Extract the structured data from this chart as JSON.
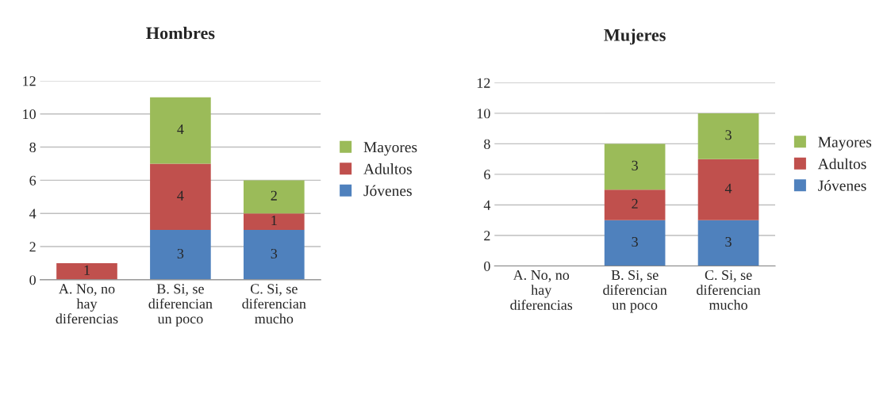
{
  "chart_data": [
    {
      "type": "bar",
      "title": "Hombres",
      "stacked": true,
      "categories": [
        "A. No, no\nhay\ndiferencias",
        "B. Si, se\ndiferencian\nun poco",
        "C. Si, se\ndiferencian\nmucho"
      ],
      "ylim": [
        0,
        12
      ],
      "yticks": [
        0,
        2,
        4,
        6,
        8,
        10,
        12
      ],
      "grid": "y",
      "legend": "right",
      "series": [
        {
          "name": "Jóvenes",
          "color": "#4f81bd",
          "values": [
            0,
            3,
            3
          ],
          "value_labels": [
            null,
            "3",
            "3"
          ]
        },
        {
          "name": "Adultos",
          "color": "#c0504d",
          "values": [
            1,
            4,
            1
          ],
          "value_labels": [
            "1",
            "4",
            "1"
          ]
        },
        {
          "name": "Mayores",
          "color": "#9bbb59",
          "values": [
            0,
            4,
            2
          ],
          "value_labels": [
            null,
            "4",
            "2"
          ]
        }
      ]
    },
    {
      "type": "bar",
      "title": "Mujeres",
      "stacked": true,
      "categories": [
        "A. No, no\nhay\ndiferencias",
        "B. Si, se\ndiferencian\nun poco",
        "C. Si, se\ndiferencian\nmucho"
      ],
      "ylim": [
        0,
        12
      ],
      "yticks": [
        0,
        2,
        4,
        6,
        8,
        10,
        12
      ],
      "grid": "y",
      "legend": "right",
      "series": [
        {
          "name": "Jóvenes",
          "color": "#4f81bd",
          "values": [
            0,
            3,
            3
          ],
          "value_labels": [
            null,
            "3",
            "3"
          ]
        },
        {
          "name": "Adultos",
          "color": "#c0504d",
          "values": [
            0,
            2,
            4
          ],
          "value_labels": [
            null,
            "2",
            "4"
          ]
        },
        {
          "name": "Mayores",
          "color": "#9bbb59",
          "values": [
            0,
            3,
            3
          ],
          "value_labels": [
            null,
            "3",
            "3"
          ]
        }
      ]
    }
  ]
}
